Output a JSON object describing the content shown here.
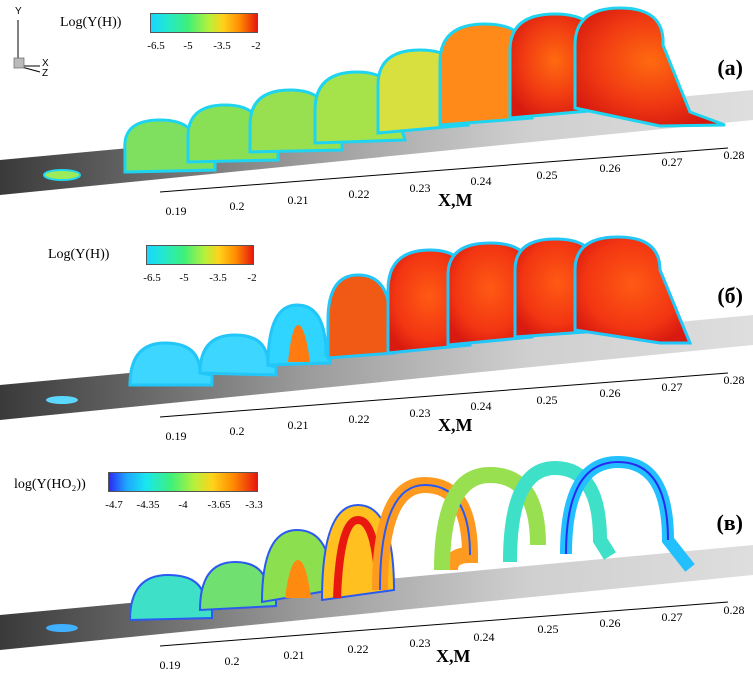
{
  "axes_icon": {
    "labels": [
      "Y",
      "X",
      "Z"
    ]
  },
  "panels": [
    {
      "label": "(a)",
      "colorbar": {
        "title": "Log(Y(H))",
        "ticks": [
          "-6.5",
          "-5",
          "-3.5",
          "-2"
        ]
      },
      "x_ticks": [
        "0.19",
        "0.2",
        "0.21",
        "0.22",
        "0.23",
        "0.24",
        "0.25",
        "0.26",
        "0.27",
        "0.28"
      ],
      "x_title": "X,M"
    },
    {
      "label": "(б)",
      "colorbar": {
        "title": "Log(Y(H))",
        "ticks": [
          "-6.5",
          "-5",
          "-3.5",
          "-2"
        ]
      },
      "x_ticks": [
        "0.19",
        "0.2",
        "0.21",
        "0.22",
        "0.23",
        "0.24",
        "0.25",
        "0.26",
        "0.27",
        "0.28"
      ],
      "x_title": "X,M"
    },
    {
      "label": "(в)",
      "colorbar": {
        "title": "log(Y(HO₂))",
        "ticks": [
          "-4.7",
          "-4.35",
          "-4",
          "-3.65",
          "-3.3"
        ]
      },
      "x_ticks": [
        "0.19",
        "0.2",
        "0.21",
        "0.22",
        "0.23",
        "0.24",
        "0.25",
        "0.26",
        "0.27",
        "0.28"
      ],
      "x_title": "X,M"
    }
  ]
}
